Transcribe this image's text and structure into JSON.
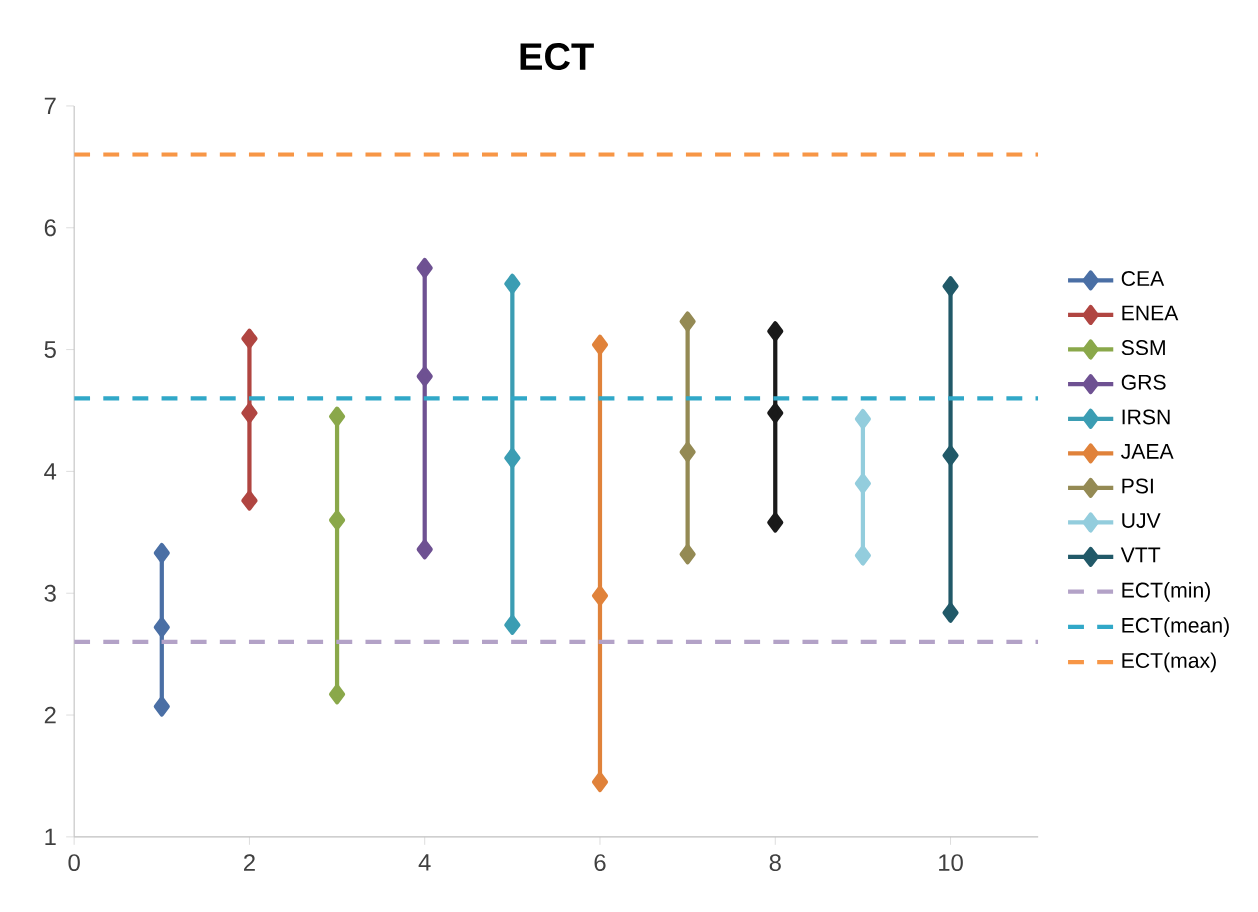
{
  "chart_data": {
    "type": "line",
    "title": "ECT",
    "xlim": [
      0,
      11
    ],
    "xticks": [
      0,
      2,
      4,
      6,
      8,
      10
    ],
    "ylim": [
      1,
      7
    ],
    "yticks": [
      1,
      2,
      3,
      4,
      5,
      6,
      7
    ],
    "marker": "diamond",
    "legend": "right",
    "grid": false,
    "series": [
      {
        "name": "CEA",
        "color": "#4a6fa5",
        "x": [
          1,
          1,
          1
        ],
        "values": [
          3.33,
          2.72,
          2.07
        ]
      },
      {
        "name": "ENEA",
        "color": "#b04541",
        "x": [
          2,
          2,
          2
        ],
        "values": [
          5.09,
          4.48,
          3.76
        ]
      },
      {
        "name": "SSM",
        "color": "#8aa84a",
        "x": [
          3,
          3,
          3
        ],
        "values": [
          4.45,
          3.6,
          2.17
        ]
      },
      {
        "name": "GRS",
        "color": "#6e5192",
        "x": [
          4,
          4,
          4
        ],
        "values": [
          5.67,
          4.78,
          3.36
        ]
      },
      {
        "name": "IRSN",
        "color": "#3b9db3",
        "x": [
          5,
          5,
          5
        ],
        "values": [
          5.54,
          4.11,
          2.74
        ]
      },
      {
        "name": "JAEA",
        "color": "#e0823a",
        "x": [
          6,
          6,
          6
        ],
        "values": [
          5.04,
          2.98,
          1.45
        ]
      },
      {
        "name": "PSI",
        "color": "#948a54",
        "x": [
          7,
          7,
          7
        ],
        "values": [
          5.23,
          4.16,
          3.32
        ]
      },
      {
        "color": "#1a1a1a",
        "x": [
          8,
          8,
          8
        ],
        "values": [
          5.15,
          4.48,
          3.58
        ]
      },
      {
        "name": "UJV",
        "color": "#93cddd",
        "x": [
          9,
          9,
          9
        ],
        "values": [
          4.43,
          3.9,
          3.31
        ]
      },
      {
        "name": "VTT",
        "color": "#215968",
        "x": [
          10,
          10,
          10
        ],
        "values": [
          5.52,
          4.13,
          2.84
        ]
      }
    ],
    "ref_lines": [
      {
        "axis": "y",
        "value": 2.6,
        "label": "ECT(min)",
        "color": "#b3a2c7",
        "line_style": "dashed"
      },
      {
        "axis": "y",
        "value": 4.6,
        "label": "ECT(mean)",
        "color": "#31a8c8",
        "line_style": "dashed"
      },
      {
        "axis": "y",
        "value": 6.6,
        "label": "ECT(max)",
        "color": "#f79646",
        "line_style": "dashed"
      }
    ]
  }
}
